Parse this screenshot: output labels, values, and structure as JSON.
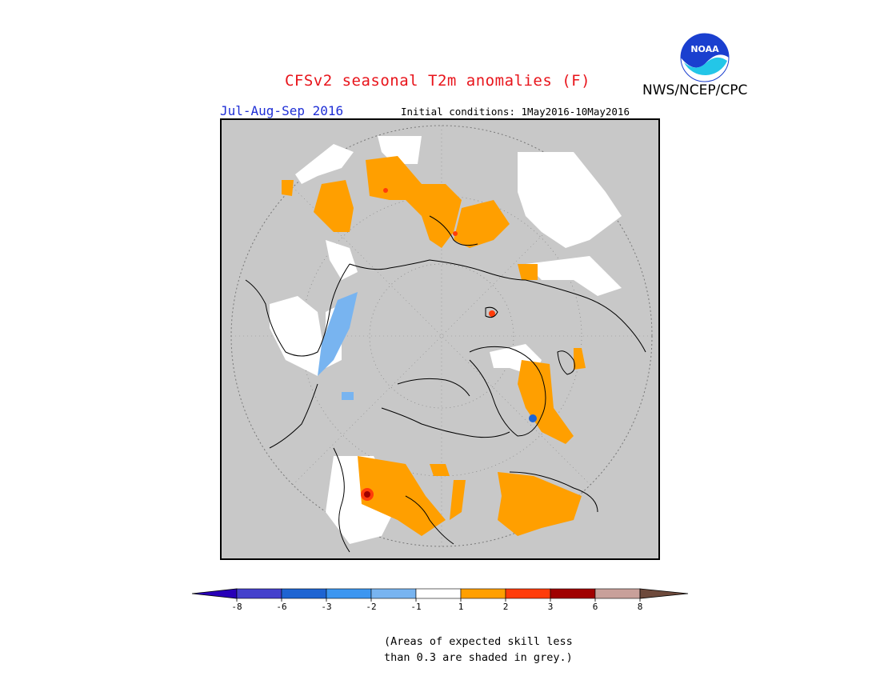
{
  "header": {
    "title": "CFSv2 seasonal T2m anomalies (F)",
    "agency": "NWS/NCEP/CPC",
    "logo_text": "NOAA",
    "period": "Jul-Aug-Sep 2016",
    "initial_conditions": "Initial conditions: 1May2016-10May2016"
  },
  "colorbar": {
    "labels": [
      "-8",
      "-6",
      "-3",
      "-2",
      "-1",
      "1",
      "2",
      "3",
      "6",
      "8"
    ],
    "colors": [
      "#2800b8",
      "#4440cc",
      "#1e64d2",
      "#3c96f0",
      "#78b4f0",
      "#ffffff",
      "#ff9f00",
      "#ff3c0a",
      "#a00000",
      "#c8a09a",
      "#6e4a3c"
    ]
  },
  "note": {
    "line1": "(Areas of expected skill less",
    "line2": "than 0.3 are shaded in grey.)"
  },
  "map": {
    "background": "#c8c8c8",
    "land_no_skill": "#ffffff",
    "warm_anomaly": "#ff9f00",
    "cold_anomaly": "#78b4f0"
  }
}
